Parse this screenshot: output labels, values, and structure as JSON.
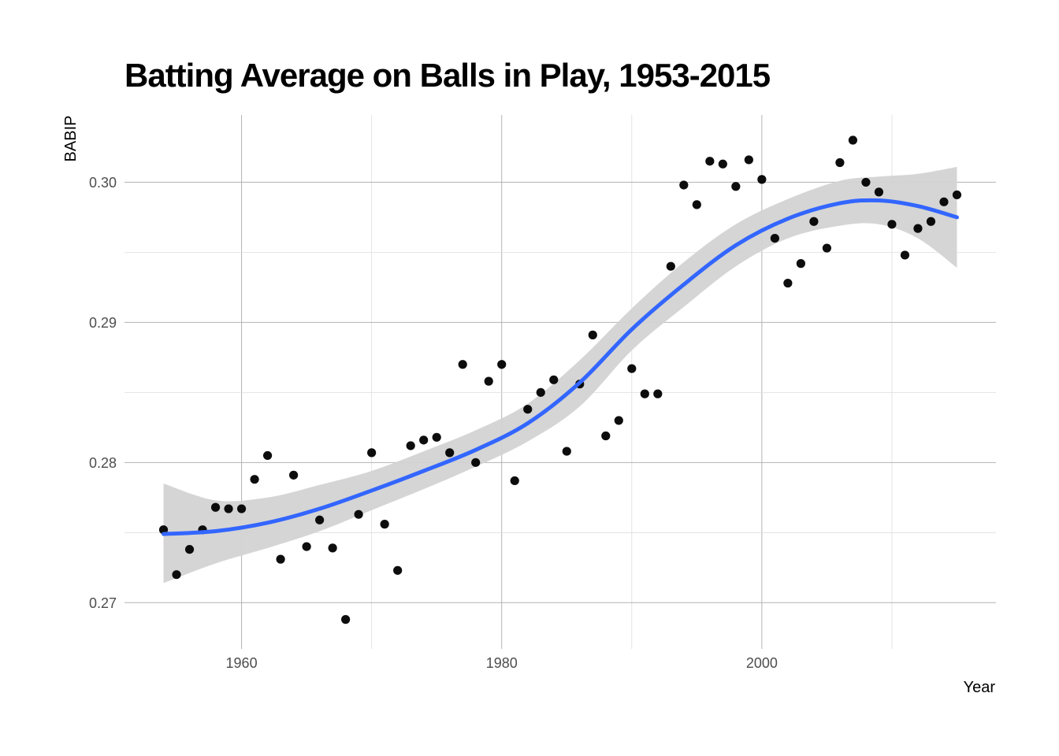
{
  "chart_data": {
    "type": "scatter",
    "title": "Batting Average on Balls in Play, 1953-2015",
    "xlabel": "Year",
    "ylabel": "BABIP",
    "xlim": [
      1951,
      2018
    ],
    "ylim": [
      0.2667,
      0.3048
    ],
    "x_ticks": [
      1960,
      1980,
      2000
    ],
    "x_tick_labels": [
      "1960",
      "1980",
      "2000"
    ],
    "x_gridlines": [
      1960,
      1970,
      1980,
      1990,
      2000,
      2010
    ],
    "y_ticks": [
      0.27,
      0.28,
      0.29,
      0.3
    ],
    "y_tick_labels": [
      "0.27",
      "0.28",
      "0.29",
      "0.30"
    ],
    "y_gridlines": [
      0.27,
      0.275,
      0.28,
      0.285,
      0.29,
      0.295,
      0.3
    ],
    "grid": true,
    "colors": {
      "points": "#000000",
      "smooth_line": "#3366ff",
      "ribbon": "#d3d3d3",
      "grid": "#bdbdbd"
    },
    "points": [
      {
        "x": 1954,
        "y": 0.2752
      },
      {
        "x": 1955,
        "y": 0.272
      },
      {
        "x": 1956,
        "y": 0.2738
      },
      {
        "x": 1957,
        "y": 0.2752
      },
      {
        "x": 1958,
        "y": 0.2768
      },
      {
        "x": 1959,
        "y": 0.2767
      },
      {
        "x": 1960,
        "y": 0.2767
      },
      {
        "x": 1961,
        "y": 0.2788
      },
      {
        "x": 1962,
        "y": 0.2805
      },
      {
        "x": 1963,
        "y": 0.2731
      },
      {
        "x": 1964,
        "y": 0.2791
      },
      {
        "x": 1965,
        "y": 0.274
      },
      {
        "x": 1966,
        "y": 0.2759
      },
      {
        "x": 1967,
        "y": 0.2739
      },
      {
        "x": 1968,
        "y": 0.2688
      },
      {
        "x": 1969,
        "y": 0.2763
      },
      {
        "x": 1970,
        "y": 0.2807
      },
      {
        "x": 1971,
        "y": 0.2756
      },
      {
        "x": 1972,
        "y": 0.2723
      },
      {
        "x": 1973,
        "y": 0.2812
      },
      {
        "x": 1974,
        "y": 0.2816
      },
      {
        "x": 1975,
        "y": 0.2818
      },
      {
        "x": 1976,
        "y": 0.2807
      },
      {
        "x": 1977,
        "y": 0.287
      },
      {
        "x": 1978,
        "y": 0.28
      },
      {
        "x": 1979,
        "y": 0.2858
      },
      {
        "x": 1980,
        "y": 0.287
      },
      {
        "x": 1981,
        "y": 0.2787
      },
      {
        "x": 1982,
        "y": 0.2838
      },
      {
        "x": 1983,
        "y": 0.285
      },
      {
        "x": 1984,
        "y": 0.2859
      },
      {
        "x": 1985,
        "y": 0.2808
      },
      {
        "x": 1986,
        "y": 0.2856
      },
      {
        "x": 1987,
        "y": 0.2891
      },
      {
        "x": 1988,
        "y": 0.2819
      },
      {
        "x": 1989,
        "y": 0.283
      },
      {
        "x": 1990,
        "y": 0.2867
      },
      {
        "x": 1991,
        "y": 0.2849
      },
      {
        "x": 1992,
        "y": 0.2849
      },
      {
        "x": 1993,
        "y": 0.294
      },
      {
        "x": 1994,
        "y": 0.2998
      },
      {
        "x": 1995,
        "y": 0.2984
      },
      {
        "x": 1996,
        "y": 0.3015
      },
      {
        "x": 1997,
        "y": 0.3013
      },
      {
        "x": 1998,
        "y": 0.2997
      },
      {
        "x": 1999,
        "y": 0.3016
      },
      {
        "x": 2000,
        "y": 0.3002
      },
      {
        "x": 2001,
        "y": 0.296
      },
      {
        "x": 2002,
        "y": 0.2928
      },
      {
        "x": 2003,
        "y": 0.2942
      },
      {
        "x": 2004,
        "y": 0.2972
      },
      {
        "x": 2005,
        "y": 0.2953
      },
      {
        "x": 2006,
        "y": 0.3014
      },
      {
        "x": 2007,
        "y": 0.303
      },
      {
        "x": 2008,
        "y": 0.3
      },
      {
        "x": 2009,
        "y": 0.2993
      },
      {
        "x": 2010,
        "y": 0.297
      },
      {
        "x": 2011,
        "y": 0.2948
      },
      {
        "x": 2012,
        "y": 0.2967
      },
      {
        "x": 2013,
        "y": 0.2972
      },
      {
        "x": 2014,
        "y": 0.2986
      },
      {
        "x": 2015,
        "y": 0.2991
      }
    ],
    "smooth": {
      "x": [
        1954,
        1958,
        1962,
        1966,
        1970,
        1974,
        1978,
        1982,
        1986,
        1990,
        1994,
        1998,
        2002,
        2006,
        2009,
        2012,
        2015
      ],
      "y": [
        0.2749,
        0.2751,
        0.2757,
        0.2767,
        0.278,
        0.2794,
        0.2809,
        0.2828,
        0.2857,
        0.2895,
        0.2927,
        0.2955,
        0.2974,
        0.2985,
        0.2987,
        0.2983,
        0.2975
      ],
      "lower": [
        0.2714,
        0.2728,
        0.2739,
        0.2751,
        0.2766,
        0.2781,
        0.2797,
        0.2815,
        0.284,
        0.288,
        0.2911,
        0.294,
        0.296,
        0.2969,
        0.297,
        0.296,
        0.2939
      ],
      "upper": [
        0.2785,
        0.2773,
        0.2775,
        0.2784,
        0.2794,
        0.2808,
        0.2823,
        0.2842,
        0.2873,
        0.291,
        0.2943,
        0.297,
        0.2988,
        0.3001,
        0.3004,
        0.3006,
        0.3011
      ]
    }
  }
}
